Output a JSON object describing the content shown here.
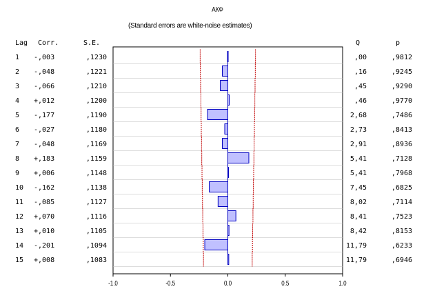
{
  "chart_data": {
    "type": "bar",
    "orientation": "horizontal",
    "title": "АКФ",
    "subtitle": "(Standard errors are white-noise estimates)",
    "headers": {
      "lag": "Lag",
      "corr": "Corr.",
      "se": "S.E.",
      "q": "Q",
      "p": "p"
    },
    "rows": [
      {
        "lag": "1",
        "corr": "-,003",
        "se": ",1230",
        "q": ",00",
        "p": ",9812"
      },
      {
        "lag": "2",
        "corr": "-,048",
        "se": ",1221",
        "q": ",16",
        "p": ",9245"
      },
      {
        "lag": "3",
        "corr": "-,066",
        "se": ",1210",
        "q": ",45",
        "p": ",9290"
      },
      {
        "lag": "4",
        "corr": "+,012",
        "se": ",1200",
        "q": ",46",
        "p": ",9770"
      },
      {
        "lag": "5",
        "corr": "-,177",
        "se": ",1190",
        "q": "2,68",
        "p": ",7486"
      },
      {
        "lag": "6",
        "corr": "-,027",
        "se": ",1180",
        "q": "2,73",
        "p": ",8413"
      },
      {
        "lag": "7",
        "corr": "-,048",
        "se": ",1169",
        "q": "2,91",
        "p": ",8936"
      },
      {
        "lag": "8",
        "corr": "+,183",
        "se": ",1159",
        "q": "5,41",
        "p": ",7128"
      },
      {
        "lag": "9",
        "corr": "+,006",
        "se": ",1148",
        "q": "5,41",
        "p": ",7968"
      },
      {
        "lag": "10",
        "corr": "-,162",
        "se": ",1138",
        "q": "7,45",
        "p": ",6825"
      },
      {
        "lag": "11",
        "corr": "-,085",
        "se": ",1127",
        "q": "8,02",
        "p": ",7114"
      },
      {
        "lag": "12",
        "corr": "+,070",
        "se": ",1116",
        "q": "8,41",
        "p": ",7523"
      },
      {
        "lag": "13",
        "corr": "+,010",
        "se": ",1105",
        "q": "8,42",
        "p": ",8153"
      },
      {
        "lag": "14",
        "corr": "-,201",
        "se": ",1094",
        "q": "11,79",
        "p": ",6233"
      },
      {
        "lag": "15",
        "corr": "+,008",
        "se": ",1083",
        "q": "11,79",
        "p": ",6946"
      }
    ],
    "values": [
      -0.003,
      -0.048,
      -0.066,
      0.012,
      -0.177,
      -0.027,
      -0.048,
      0.183,
      0.006,
      -0.162,
      -0.085,
      0.07,
      0.01,
      -0.201,
      0.008
    ],
    "std_errors": [
      0.123,
      0.1221,
      0.121,
      0.12,
      0.119,
      0.118,
      0.1169,
      0.1159,
      0.1148,
      0.1138,
      0.1127,
      0.1116,
      0.1105,
      0.1094,
      0.1083
    ],
    "confidence_multiplier": 1.96,
    "xlim": [
      -1.0,
      1.0
    ],
    "x_ticks": [
      -1.0,
      -0.5,
      0.0,
      0.5,
      1.0
    ],
    "x_tick_labels": [
      "-1.0",
      "-0.5",
      "0.0",
      "0.5",
      "1.0"
    ],
    "grid": true,
    "colors": {
      "bar_fill": "#c0c0ff",
      "bar_stroke": "#0000c0",
      "zero_line": "#0000c0",
      "confidence_line": "#c00000",
      "grid": "#bbbbbb"
    }
  }
}
